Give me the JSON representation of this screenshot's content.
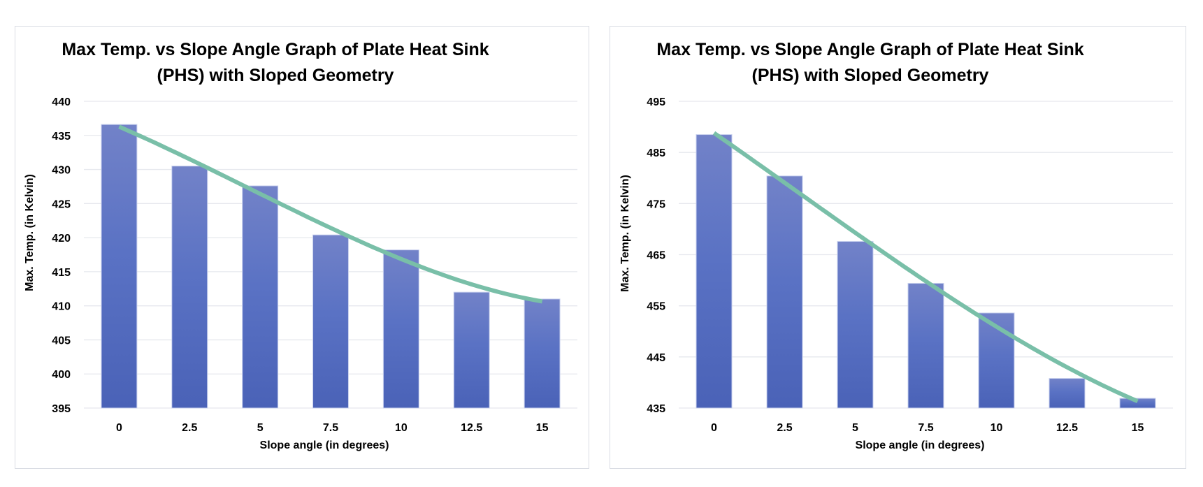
{
  "chart_data": [
    {
      "type": "bar",
      "title_lines": [
        "Max Temp. vs Slope Angle Graph of Plate Heat Sink",
        "(PHS) with Sloped Geometry"
      ],
      "xlabel": "Slope angle (in degrees)",
      "ylabel": "Max. Temp. (in Kelvin)",
      "categories": [
        "0",
        "2.5",
        "5",
        "7.5",
        "10",
        "12.5",
        "15"
      ],
      "values": [
        436.6,
        430.5,
        427.6,
        420.4,
        418.2,
        412.0,
        411.0
      ],
      "ylim": [
        395,
        440
      ],
      "yticks": [
        395,
        400,
        405,
        410,
        415,
        420,
        425,
        430,
        435,
        440
      ],
      "grid": true,
      "legend": "none",
      "trendline": {
        "type": "polynomial",
        "order": 3
      },
      "colors": {
        "bar_top": "#7282c8",
        "bar_bottom": "#4a62b7",
        "trendline": "#79bfa8"
      }
    },
    {
      "type": "bar",
      "title_lines": [
        "Max Temp. vs Slope Angle Graph of Plate Heat Sink",
        "(PHS) with Sloped Geometry"
      ],
      "xlabel": "Slope angle (in degrees)",
      "ylabel": "Max. Temp. (in Kelvin)",
      "categories": [
        "0",
        "2.5",
        "5",
        "7.5",
        "10",
        "12.5",
        "15"
      ],
      "values": [
        488.5,
        480.4,
        467.6,
        459.4,
        453.6,
        440.8,
        436.9
      ],
      "ylim": [
        435,
        495
      ],
      "yticks": [
        435,
        445,
        455,
        465,
        475,
        485,
        495
      ],
      "grid": true,
      "legend": "none",
      "trendline": {
        "type": "polynomial",
        "order": 3
      },
      "colors": {
        "bar_top": "#7282c8",
        "bar_bottom": "#4a62b7",
        "trendline": "#79bfa8"
      }
    }
  ]
}
